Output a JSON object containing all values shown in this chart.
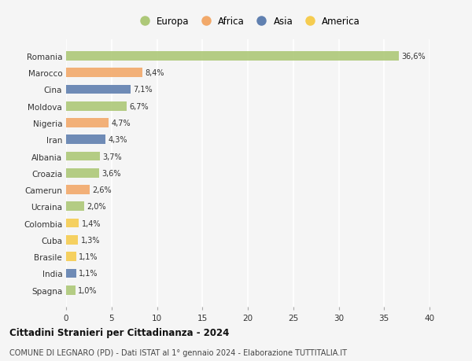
{
  "countries": [
    "Romania",
    "Marocco",
    "Cina",
    "Moldova",
    "Nigeria",
    "Iran",
    "Albania",
    "Croazia",
    "Camerun",
    "Ucraina",
    "Colombia",
    "Cuba",
    "Brasile",
    "India",
    "Spagna"
  ],
  "values": [
    36.6,
    8.4,
    7.1,
    6.7,
    4.7,
    4.3,
    3.7,
    3.6,
    2.6,
    2.0,
    1.4,
    1.3,
    1.1,
    1.1,
    1.0
  ],
  "labels": [
    "36,6%",
    "8,4%",
    "7,1%",
    "6,7%",
    "4,7%",
    "4,3%",
    "3,7%",
    "3,6%",
    "2,6%",
    "2,0%",
    "1,4%",
    "1,3%",
    "1,1%",
    "1,1%",
    "1,0%"
  ],
  "continents": [
    "Europa",
    "Africa",
    "Asia",
    "Europa",
    "Africa",
    "Asia",
    "Europa",
    "Europa",
    "Africa",
    "Europa",
    "America",
    "America",
    "America",
    "Asia",
    "Europa"
  ],
  "continent_colors": {
    "Europa": "#adc878",
    "Africa": "#f2a96a",
    "Asia": "#6080b0",
    "America": "#f5cc50"
  },
  "title": "Cittadini Stranieri per Cittadinanza - 2024",
  "subtitle": "COMUNE DI LEGNARO (PD) - Dati ISTAT al 1° gennaio 2024 - Elaborazione TUTTITALIA.IT",
  "xlim": [
    0,
    40
  ],
  "xticks": [
    0,
    5,
    10,
    15,
    20,
    25,
    30,
    35,
    40
  ],
  "background_color": "#f5f5f5",
  "grid_color": "#ffffff",
  "bar_height": 0.55,
  "legend_order": [
    "Europa",
    "Africa",
    "Asia",
    "America"
  ]
}
